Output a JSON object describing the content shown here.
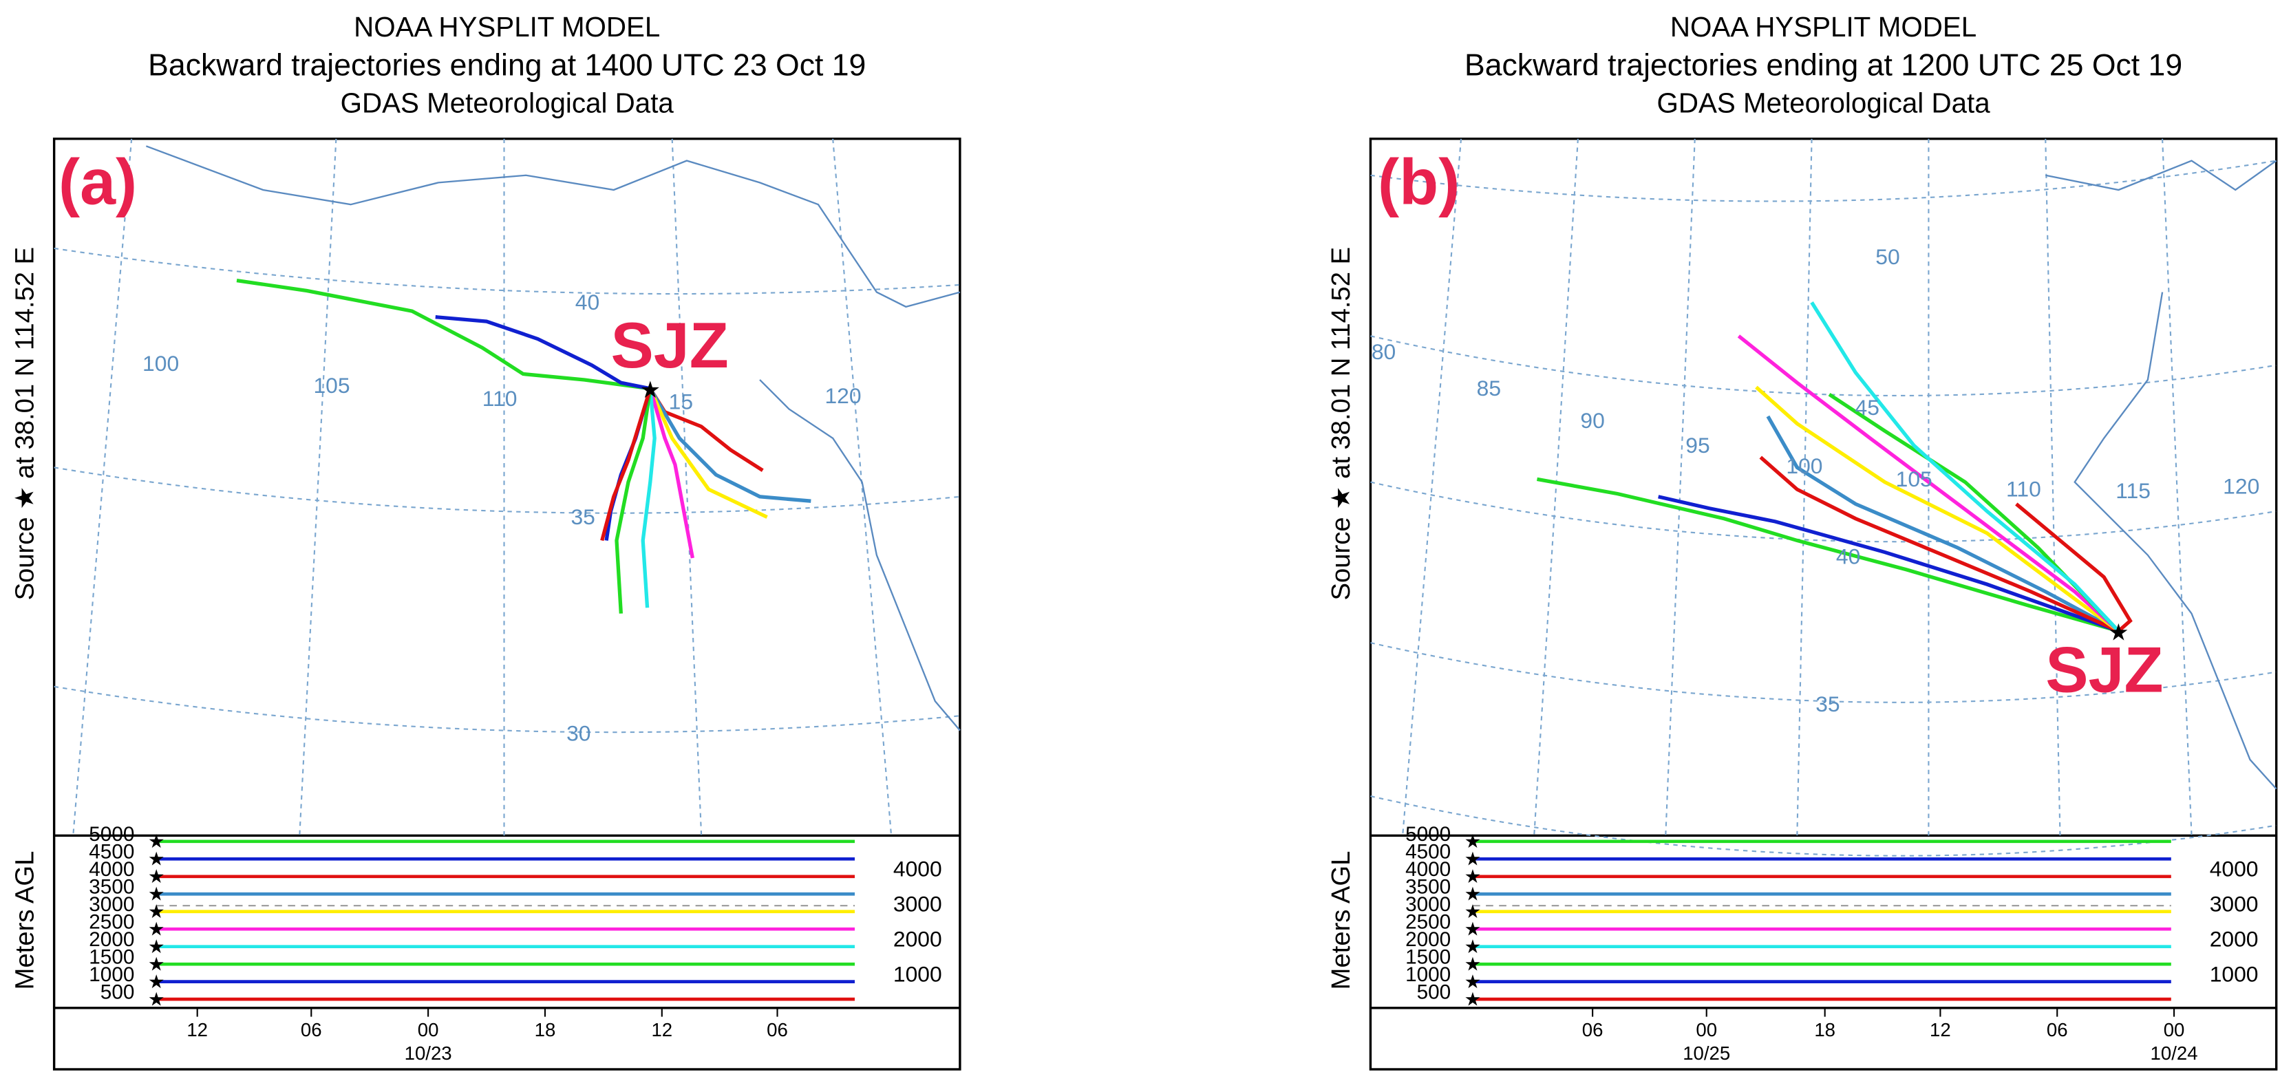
{
  "panels": [
    {
      "header": [
        "NOAA HYSPLIT MODEL",
        "Backward trajectories ending at 1400 UTC 23 Oct 19",
        "GDAS Meteorological Data"
      ],
      "label": "(a)",
      "site": "SJZ",
      "source_label": "Source ★ at 38.01 N 114.52 E",
      "lon_labels": [
        "100",
        "105",
        "110",
        "15",
        "120"
      ],
      "lat_labels": [
        "40",
        "35",
        "30"
      ],
      "height_axis_title": "Meters AGL",
      "height_left": [
        "5000",
        "4500",
        "4000",
        "3500",
        "3000",
        "2500",
        "2000",
        "1500",
        "1000",
        "500"
      ],
      "height_right": [
        "4000",
        "3000",
        "2000",
        "1000"
      ],
      "time_labels": [
        "12",
        "06",
        "00",
        "18",
        "12",
        "06"
      ],
      "date_labels": [
        "10/23"
      ]
    },
    {
      "header": [
        "NOAA HYSPLIT MODEL",
        "Backward trajectories ending at 1200 UTC 25 Oct 19",
        "GDAS Meteorological Data"
      ],
      "label": "(b)",
      "site": "SJZ",
      "source_label": "Source ★ at 38.01 N 114.52 E",
      "lon_labels": [
        "80",
        "85",
        "90",
        "95",
        "100",
        "105",
        "110",
        "115",
        "120"
      ],
      "lat_labels": [
        "50",
        "45",
        "40",
        "35"
      ],
      "height_axis_title": "Meters AGL",
      "height_left": [
        "5000",
        "4500",
        "4000",
        "3500",
        "3000",
        "2500",
        "2000",
        "1500",
        "1000",
        "500"
      ],
      "height_right": [
        "4000",
        "3000",
        "2000",
        "1000"
      ],
      "time_labels": [
        "06",
        "00",
        "18",
        "12",
        "06",
        "00"
      ],
      "date_labels": [
        "10/25",
        "10/24"
      ]
    }
  ]
}
